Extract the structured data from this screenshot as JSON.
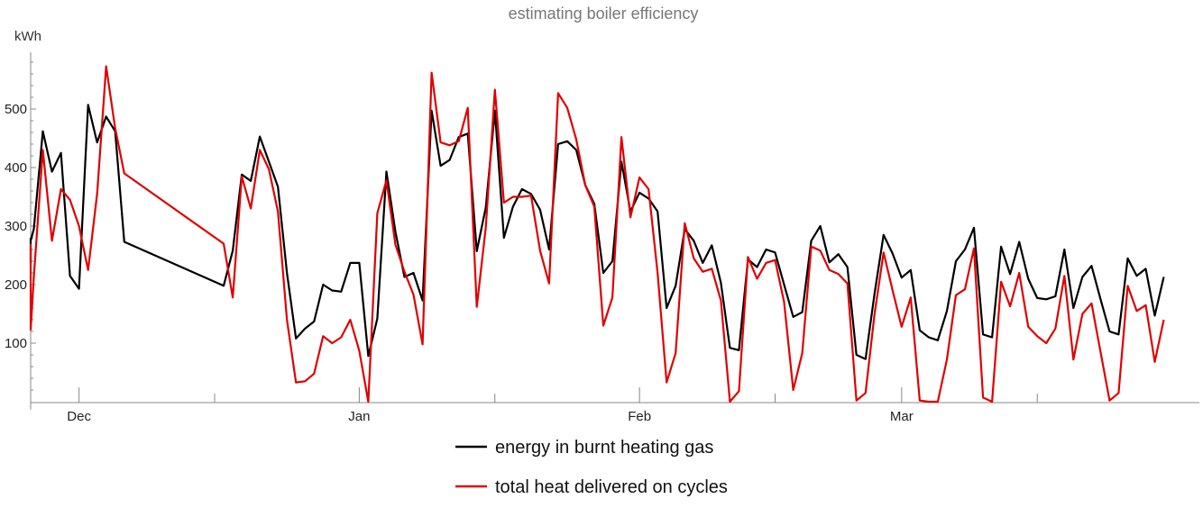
{
  "chart_data": {
    "type": "line",
    "title": "estimating boiler efficiency",
    "xlabel": "",
    "ylabel": "kWh",
    "ylim": [
      0,
      600
    ],
    "yticks": [
      100,
      200,
      300,
      400,
      500
    ],
    "xlim": [
      "2023-11-25",
      "2024-03-28"
    ],
    "xticks": [
      {
        "date": "2023-12-01",
        "label": "Dec"
      },
      {
        "date": "2024-01-01",
        "label": "Jan"
      },
      {
        "date": "2024-02-01",
        "label": "Feb"
      },
      {
        "date": "2024-03-01",
        "label": "Mar"
      }
    ],
    "grid": false,
    "legend": "bottom",
    "series": [
      {
        "name": "energy in burnt heating gas",
        "color": "#000000",
        "points": [
          [
            "2023-11-23",
            280
          ],
          [
            "2023-11-24",
            237
          ],
          [
            "2023-11-25",
            275
          ],
          [
            "2023-11-26",
            295
          ],
          [
            "2023-11-27",
            462
          ],
          [
            "2023-11-28",
            393
          ],
          [
            "2023-11-29",
            425
          ],
          [
            "2023-11-30",
            215
          ],
          [
            "2023-12-01",
            193
          ],
          [
            "2023-12-02",
            507
          ],
          [
            "2023-12-03",
            443
          ],
          [
            "2023-12-04",
            487
          ],
          [
            "2023-12-05",
            462
          ],
          [
            "2023-12-06",
            273
          ],
          [
            "2023-12-17",
            198
          ],
          [
            "2023-12-18",
            258
          ],
          [
            "2023-12-19",
            388
          ],
          [
            "2023-12-20",
            377
          ],
          [
            "2023-12-21",
            453
          ],
          [
            "2023-12-22",
            410
          ],
          [
            "2023-12-23",
            367
          ],
          [
            "2023-12-24",
            220
          ],
          [
            "2023-12-25",
            108
          ],
          [
            "2023-12-26",
            125
          ],
          [
            "2023-12-27",
            137
          ],
          [
            "2023-12-28",
            200
          ],
          [
            "2023-12-29",
            190
          ],
          [
            "2023-12-30",
            188
          ],
          [
            "2023-12-31",
            237
          ],
          [
            "2024-01-01",
            237
          ],
          [
            "2024-01-02",
            78
          ],
          [
            "2024-01-03",
            142
          ],
          [
            "2024-01-04",
            393
          ],
          [
            "2024-01-05",
            290
          ],
          [
            "2024-01-06",
            213
          ],
          [
            "2024-01-07",
            220
          ],
          [
            "2024-01-08",
            173
          ],
          [
            "2024-01-09",
            497
          ],
          [
            "2024-01-10",
            403
          ],
          [
            "2024-01-11",
            413
          ],
          [
            "2024-01-12",
            452
          ],
          [
            "2024-01-13",
            458
          ],
          [
            "2024-01-14",
            257
          ],
          [
            "2024-01-15",
            332
          ],
          [
            "2024-01-16",
            497
          ],
          [
            "2024-01-17",
            280
          ],
          [
            "2024-01-18",
            333
          ],
          [
            "2024-01-19",
            363
          ],
          [
            "2024-01-20",
            355
          ],
          [
            "2024-01-21",
            328
          ],
          [
            "2024-01-22",
            260
          ],
          [
            "2024-01-23",
            440
          ],
          [
            "2024-01-24",
            445
          ],
          [
            "2024-01-25",
            430
          ],
          [
            "2024-01-26",
            370
          ],
          [
            "2024-01-27",
            338
          ],
          [
            "2024-01-28",
            220
          ],
          [
            "2024-01-29",
            240
          ],
          [
            "2024-01-30",
            410
          ],
          [
            "2024-01-31",
            325
          ],
          [
            "2024-02-01",
            357
          ],
          [
            "2024-02-02",
            347
          ],
          [
            "2024-02-03",
            325
          ],
          [
            "2024-02-04",
            160
          ],
          [
            "2024-02-05",
            198
          ],
          [
            "2024-02-06",
            295
          ],
          [
            "2024-02-07",
            275
          ],
          [
            "2024-02-08",
            237
          ],
          [
            "2024-02-09",
            267
          ],
          [
            "2024-02-10",
            203
          ],
          [
            "2024-02-11",
            92
          ],
          [
            "2024-02-12",
            88
          ],
          [
            "2024-02-13",
            243
          ],
          [
            "2024-02-14",
            230
          ],
          [
            "2024-02-15",
            260
          ],
          [
            "2024-02-16",
            255
          ],
          [
            "2024-02-17",
            200
          ],
          [
            "2024-02-18",
            145
          ],
          [
            "2024-02-19",
            153
          ],
          [
            "2024-02-20",
            275
          ],
          [
            "2024-02-21",
            300
          ],
          [
            "2024-02-22",
            238
          ],
          [
            "2024-02-23",
            252
          ],
          [
            "2024-02-24",
            230
          ],
          [
            "2024-02-25",
            80
          ],
          [
            "2024-02-26",
            73
          ],
          [
            "2024-02-27",
            185
          ],
          [
            "2024-02-28",
            285
          ],
          [
            "2024-02-29",
            253
          ],
          [
            "2024-03-01",
            212
          ],
          [
            "2024-03-02",
            225
          ],
          [
            "2024-03-03",
            122
          ],
          [
            "2024-03-04",
            110
          ],
          [
            "2024-03-05",
            105
          ],
          [
            "2024-03-06",
            155
          ],
          [
            "2024-03-07",
            240
          ],
          [
            "2024-03-08",
            260
          ],
          [
            "2024-03-09",
            297
          ],
          [
            "2024-03-10",
            115
          ],
          [
            "2024-03-11",
            110
          ],
          [
            "2024-03-12",
            265
          ],
          [
            "2024-03-13",
            218
          ],
          [
            "2024-03-14",
            273
          ],
          [
            "2024-03-15",
            210
          ],
          [
            "2024-03-16",
            177
          ],
          [
            "2024-03-17",
            175
          ],
          [
            "2024-03-18",
            180
          ],
          [
            "2024-03-19",
            260
          ],
          [
            "2024-03-20",
            160
          ],
          [
            "2024-03-21",
            213
          ],
          [
            "2024-03-22",
            232
          ],
          [
            "2024-03-23",
            175
          ],
          [
            "2024-03-24",
            120
          ],
          [
            "2024-03-25",
            115
          ],
          [
            "2024-03-26",
            245
          ],
          [
            "2024-03-27",
            215
          ],
          [
            "2024-03-28",
            227
          ],
          [
            "2024-03-29",
            147
          ],
          [
            "2024-03-30",
            213
          ]
        ]
      },
      {
        "name": "total heat delivered on cycles",
        "color": "#e00000",
        "points": [
          [
            "2023-11-23",
            228
          ],
          [
            "2023-11-24",
            268
          ],
          [
            "2023-11-25",
            123
          ],
          [
            "2023-11-26",
            213
          ],
          [
            "2023-11-27",
            430
          ],
          [
            "2023-11-28",
            275
          ],
          [
            "2023-11-29",
            363
          ],
          [
            "2023-11-30",
            345
          ],
          [
            "2023-12-01",
            300
          ],
          [
            "2023-12-02",
            225
          ],
          [
            "2023-12-03",
            355
          ],
          [
            "2023-12-04",
            573
          ],
          [
            "2023-12-05",
            467
          ],
          [
            "2023-12-06",
            390
          ],
          [
            "2023-12-17",
            270
          ],
          [
            "2023-12-18",
            178
          ],
          [
            "2023-12-19",
            385
          ],
          [
            "2023-12-20",
            330
          ],
          [
            "2023-12-21",
            430
          ],
          [
            "2023-12-22",
            397
          ],
          [
            "2023-12-23",
            325
          ],
          [
            "2023-12-24",
            140
          ],
          [
            "2023-12-25",
            33
          ],
          [
            "2023-12-26",
            35
          ],
          [
            "2023-12-27",
            48
          ],
          [
            "2023-12-28",
            112
          ],
          [
            "2023-12-29",
            100
          ],
          [
            "2023-12-30",
            110
          ],
          [
            "2023-12-31",
            140
          ],
          [
            "2024-01-01",
            87
          ],
          [
            "2024-01-02",
            0
          ],
          [
            "2024-01-03",
            322
          ],
          [
            "2024-01-04",
            378
          ],
          [
            "2024-01-05",
            268
          ],
          [
            "2024-01-06",
            222
          ],
          [
            "2024-01-07",
            183
          ],
          [
            "2024-01-08",
            98
          ],
          [
            "2024-01-09",
            562
          ],
          [
            "2024-01-10",
            443
          ],
          [
            "2024-01-11",
            438
          ],
          [
            "2024-01-12",
            445
          ],
          [
            "2024-01-13",
            502
          ],
          [
            "2024-01-14",
            162
          ],
          [
            "2024-01-15",
            298
          ],
          [
            "2024-01-16",
            533
          ],
          [
            "2024-01-17",
            340
          ],
          [
            "2024-01-18",
            350
          ],
          [
            "2024-01-19",
            350
          ],
          [
            "2024-01-20",
            352
          ],
          [
            "2024-01-21",
            258
          ],
          [
            "2024-01-22",
            202
          ],
          [
            "2024-01-23",
            527
          ],
          [
            "2024-01-24",
            502
          ],
          [
            "2024-01-25",
            448
          ],
          [
            "2024-01-26",
            370
          ],
          [
            "2024-01-27",
            333
          ],
          [
            "2024-01-28",
            130
          ],
          [
            "2024-01-29",
            178
          ],
          [
            "2024-01-30",
            452
          ],
          [
            "2024-01-31",
            315
          ],
          [
            "2024-02-01",
            383
          ],
          [
            "2024-02-02",
            363
          ],
          [
            "2024-02-03",
            220
          ],
          [
            "2024-02-04",
            33
          ],
          [
            "2024-02-05",
            83
          ],
          [
            "2024-02-06",
            305
          ],
          [
            "2024-02-07",
            245
          ],
          [
            "2024-02-08",
            222
          ],
          [
            "2024-02-09",
            227
          ],
          [
            "2024-02-10",
            173
          ],
          [
            "2024-02-11",
            0
          ],
          [
            "2024-02-12",
            18
          ],
          [
            "2024-02-13",
            247
          ],
          [
            "2024-02-14",
            210
          ],
          [
            "2024-02-15",
            237
          ],
          [
            "2024-02-16",
            242
          ],
          [
            "2024-02-17",
            170
          ],
          [
            "2024-02-18",
            20
          ],
          [
            "2024-02-19",
            83
          ],
          [
            "2024-02-20",
            265
          ],
          [
            "2024-02-21",
            258
          ],
          [
            "2024-02-22",
            225
          ],
          [
            "2024-02-23",
            218
          ],
          [
            "2024-02-24",
            202
          ],
          [
            "2024-02-25",
            2
          ],
          [
            "2024-02-26",
            15
          ],
          [
            "2024-02-27",
            150
          ],
          [
            "2024-02-28",
            255
          ],
          [
            "2024-02-29",
            190
          ],
          [
            "2024-03-01",
            128
          ],
          [
            "2024-03-02",
            178
          ],
          [
            "2024-03-03",
            2
          ],
          [
            "2024-03-04",
            0
          ],
          [
            "2024-03-05",
            0
          ],
          [
            "2024-03-06",
            72
          ],
          [
            "2024-03-07",
            182
          ],
          [
            "2024-03-08",
            192
          ],
          [
            "2024-03-09",
            262
          ],
          [
            "2024-03-10",
            7
          ],
          [
            "2024-03-11",
            0
          ],
          [
            "2024-03-12",
            205
          ],
          [
            "2024-03-13",
            163
          ],
          [
            "2024-03-14",
            220
          ],
          [
            "2024-03-15",
            128
          ],
          [
            "2024-03-16",
            112
          ],
          [
            "2024-03-17",
            100
          ],
          [
            "2024-03-18",
            125
          ],
          [
            "2024-03-19",
            215
          ],
          [
            "2024-03-20",
            72
          ],
          [
            "2024-03-21",
            150
          ],
          [
            "2024-03-22",
            168
          ],
          [
            "2024-03-23",
            85
          ],
          [
            "2024-03-24",
            2
          ],
          [
            "2024-03-25",
            15
          ],
          [
            "2024-03-26",
            198
          ],
          [
            "2024-03-27",
            155
          ],
          [
            "2024-03-28",
            165
          ],
          [
            "2024-03-29",
            68
          ],
          [
            "2024-03-30",
            140
          ]
        ]
      }
    ]
  }
}
